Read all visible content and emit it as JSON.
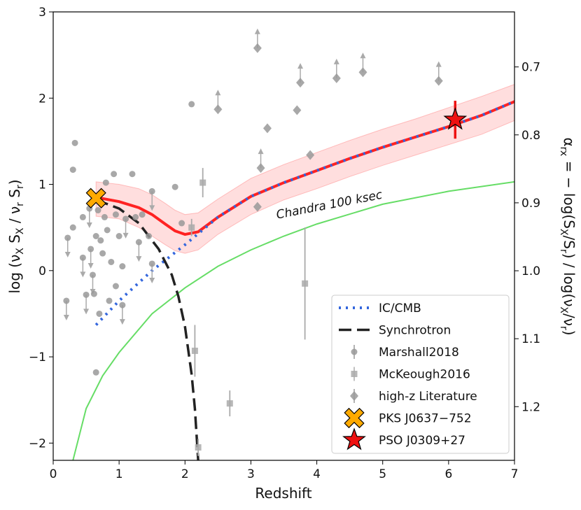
{
  "chart_data": {
    "type": "line",
    "xlabel": "Redshift",
    "ylabel": [
      {
        "text": "log (ν"
      },
      {
        "text": "X",
        "sub": true
      },
      {
        "text": " S"
      },
      {
        "text": "X",
        "sub": true
      },
      {
        "text": "  / ν"
      },
      {
        "text": "r",
        "sub": true
      },
      {
        "text": " S"
      },
      {
        "text": "r",
        "sub": true
      },
      {
        "text": ")"
      }
    ],
    "y2label": [
      {
        "text": "α"
      },
      {
        "text": "rx",
        "sub": true
      },
      {
        "text": " = − log(S"
      },
      {
        "text": "X",
        "sub": true
      },
      {
        "text": "/S"
      },
      {
        "text": "r",
        "sub": true
      },
      {
        "text": ") / log(ν"
      },
      {
        "text": "X",
        "sub": true
      },
      {
        "text": "/ν"
      },
      {
        "text": "r",
        "sub": true
      },
      {
        "text": ")"
      }
    ],
    "xlim": [
      0,
      7
    ],
    "ylim": [
      -2.2,
      3
    ],
    "y2lim": [
      1.279,
      0.619
    ],
    "xticks": [
      0,
      1,
      2,
      3,
      4,
      5,
      6,
      7
    ],
    "yticks": [
      {
        "value": -2,
        "label": "−2"
      },
      {
        "value": -1,
        "label": "−1"
      },
      0,
      1,
      2,
      3
    ],
    "y2ticks": [
      0.7,
      0.8,
      0.9,
      {
        "value": 1.0,
        "label": "1.0"
      },
      1.1,
      1.2
    ],
    "annotation": {
      "text": "Chandra 100 ksec",
      "color": "#44cc44",
      "x": 4.2,
      "y": 0.72
    },
    "series": [
      {
        "kind": "line",
        "color": "#66dd66",
        "style": "solid",
        "x": [
          0.3,
          0.5,
          0.75,
          1,
          1.5,
          2,
          2.5,
          3,
          3.5,
          4,
          5,
          6,
          7
        ],
        "values": [
          -2.2,
          -1.6,
          -1.22,
          -0.95,
          -0.5,
          -0.2,
          0.05,
          0.24,
          0.4,
          0.54,
          0.77,
          0.92,
          1.03
        ]
      },
      {
        "kind": "line",
        "color": "#ff2222",
        "style": "band",
        "x": [
          0.65,
          1,
          1.3,
          1.5,
          1.7,
          1.85,
          2,
          2.2,
          2.5,
          3,
          3.5,
          4,
          4.5,
          5,
          5.5,
          6,
          6.5,
          7
        ],
        "values": [
          0.85,
          0.8,
          0.73,
          0.65,
          0.54,
          0.46,
          0.42,
          0.45,
          0.62,
          0.86,
          1.02,
          1.16,
          1.3,
          1.43,
          1.55,
          1.67,
          1.8,
          1.96
        ],
        "band_lower": [
          0.63,
          0.6,
          0.5,
          0.4,
          0.3,
          0.23,
          0.2,
          0.24,
          0.42,
          0.65,
          0.82,
          0.95,
          1.09,
          1.22,
          1.34,
          1.46,
          1.58,
          1.74
        ],
        "band_upper": [
          1.03,
          1.0,
          0.95,
          0.88,
          0.78,
          0.7,
          0.65,
          0.67,
          0.83,
          1.07,
          1.23,
          1.37,
          1.51,
          1.64,
          1.76,
          1.89,
          2.02,
          2.16
        ]
      },
      {
        "kind": "line",
        "name": "IC/CMB",
        "color": "#3366dd",
        "style": "dotted",
        "x": [
          0.65,
          1,
          1.5,
          2,
          2.5,
          3,
          3.5,
          4,
          4.5,
          5,
          5.5,
          6,
          6.5,
          7
        ],
        "values": [
          -0.63,
          -0.35,
          0,
          0.3,
          0.62,
          0.86,
          1.02,
          1.16,
          1.3,
          1.43,
          1.55,
          1.67,
          1.8,
          1.96
        ]
      },
      {
        "kind": "line",
        "name": "Synchrotron",
        "color": "#222222",
        "style": "dashed",
        "x": [
          0.65,
          1,
          1.3,
          1.6,
          1.8,
          1.9,
          2,
          2.1,
          2.15,
          2.2
        ],
        "values": [
          0.82,
          0.72,
          0.55,
          0.25,
          -0.05,
          -0.3,
          -0.65,
          -1.2,
          -1.6,
          -2.2
        ]
      },
      {
        "kind": "scatter",
        "name": "Marshall2018",
        "color": "#999999",
        "marker": "circle",
        "limit": "upper",
        "x": [
          0.33,
          0.3,
          0.3,
          0.2,
          0.22,
          0.45,
          0.45,
          0.5,
          0.55,
          0.57,
          0.6,
          0.62,
          0.65,
          0.68,
          0.7,
          0.72,
          0.75,
          0.78,
          0.8,
          0.82,
          0.85,
          0.88,
          0.92,
          0.95,
          0.95,
          1.0,
          1.05,
          1.05,
          1.1,
          1.2,
          1.25,
          1.3,
          1.35,
          1.45,
          1.5,
          1.5,
          1.85,
          2.1,
          0.65,
          1.95
        ],
        "values": [
          1.48,
          1.17,
          0.5,
          -0.35,
          0.38,
          0.62,
          0.15,
          -0.28,
          0.72,
          0.25,
          -0.05,
          -0.27,
          0.4,
          0.7,
          -0.5,
          0.35,
          0.2,
          0.62,
          1.02,
          0.47,
          -0.35,
          0.1,
          1.12,
          0.65,
          -0.18,
          0.4,
          -0.4,
          0.05,
          0.6,
          1.12,
          0.62,
          0.33,
          0.65,
          0.4,
          0.92,
          0.08,
          0.97,
          1.93,
          -1.18,
          0.55
        ],
        "limits": [
          false,
          false,
          false,
          true,
          true,
          false,
          true,
          true,
          true,
          true,
          true,
          false,
          false,
          false,
          false,
          false,
          false,
          false,
          false,
          false,
          false,
          false,
          false,
          false,
          false,
          false,
          true,
          false,
          true,
          false,
          false,
          true,
          false,
          false,
          true,
          true,
          false,
          false,
          false,
          false
        ]
      },
      {
        "kind": "scatter",
        "name": "McKeough2016",
        "color": "#aaaaaa",
        "marker": "square",
        "x": [
          2.27,
          2.15,
          2.2,
          2.68,
          3.82,
          2.1
        ],
        "values": [
          1.02,
          -0.93,
          -2.05,
          -1.54,
          -0.15,
          0.5
        ],
        "errors": [
          0.17,
          0.3,
          0.1,
          0.15,
          0.65,
          0.1
        ]
      },
      {
        "kind": "scatter",
        "name": "high-z Literature",
        "color": "#999999",
        "marker": "diamond",
        "limit": "lower",
        "x": [
          3.1,
          3.1,
          3.15,
          3.25,
          2.5,
          3.7,
          3.75,
          3.9,
          4.3,
          4.7,
          5.85
        ],
        "values": [
          2.58,
          0.74,
          1.19,
          1.65,
          1.87,
          1.86,
          2.18,
          1.34,
          2.23,
          2.3,
          2.2
        ],
        "limits": [
          true,
          false,
          true,
          false,
          true,
          false,
          true,
          false,
          true,
          true,
          true
        ]
      },
      {
        "kind": "scatter",
        "name": "PKS J0637−752",
        "color": "#ffaa00",
        "marker": "cross",
        "x": [
          0.65
        ],
        "values": [
          0.84
        ]
      },
      {
        "kind": "scatter",
        "name": "PSO J0309+27",
        "color": "#ee1111",
        "marker": "star",
        "x": [
          6.1
        ],
        "values": [
          1.75
        ],
        "errors": [
          0.22
        ]
      }
    ]
  }
}
